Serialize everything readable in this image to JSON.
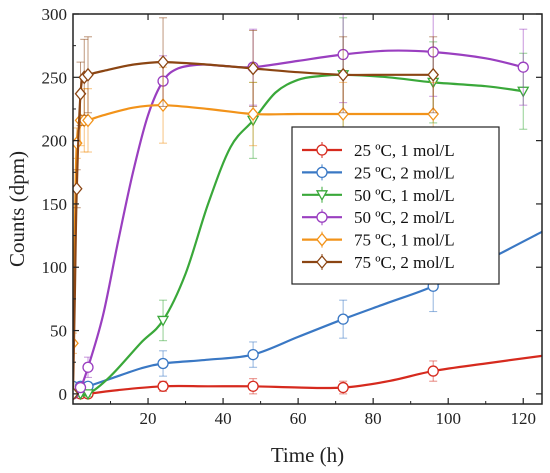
{
  "chart_data": {
    "type": "line",
    "title": "",
    "xlabel": "Time (h)",
    "ylabel": "Counts (dpm)",
    "xlim": [
      0,
      125
    ],
    "ylim": [
      -8,
      300
    ],
    "x_ticks": [
      20,
      40,
      60,
      80,
      100,
      120
    ],
    "y_ticks": [
      0,
      50,
      100,
      150,
      200,
      250,
      300
    ],
    "x_tick_labels": [
      "20",
      "40",
      "60",
      "80",
      "100",
      "120"
    ],
    "y_tick_labels": [
      "0",
      "50",
      "100",
      "150",
      "200",
      "250",
      "300"
    ],
    "grid": false,
    "legend_position": "center-right",
    "series": [
      {
        "name": "25 ºC, 1 mol/L",
        "color": "#d62a1e",
        "marker": "circle",
        "x": [
          0,
          2,
          4,
          24,
          48,
          72,
          96
        ],
        "y": [
          0,
          0,
          0,
          6,
          6,
          5,
          18
        ],
        "err": [
          2,
          2,
          2,
          4,
          6,
          5,
          8
        ],
        "curve_x": [
          0,
          2,
          4,
          12,
          24,
          36,
          48,
          60,
          72,
          84,
          96,
          110,
          125
        ],
        "curve_y": [
          -1,
          -1,
          0,
          3,
          6,
          6,
          6,
          5,
          5,
          10,
          18,
          24,
          30
        ]
      },
      {
        "name": "25 ºC, 2 mol/L",
        "color": "#3a78c4",
        "marker": "circle",
        "x": [
          0,
          2,
          4,
          24,
          48,
          72,
          96
        ],
        "y": [
          6,
          6,
          6,
          24,
          31,
          59,
          85
        ],
        "err": [
          3,
          3,
          3,
          10,
          10,
          15,
          20
        ],
        "curve_x": [
          0,
          2,
          4,
          10,
          18,
          24,
          36,
          48,
          60,
          72,
          84,
          96,
          110,
          125
        ],
        "curve_y": [
          5,
          5,
          6,
          12,
          20,
          24,
          27,
          31,
          45,
          59,
          72,
          85,
          105,
          128
        ]
      },
      {
        "name": "50 ºC, 1 mol/L",
        "color": "#3aa83a",
        "marker": "triangle-down",
        "x": [
          0,
          2,
          4,
          24,
          48,
          72,
          96,
          120
        ],
        "y": [
          0,
          0,
          0,
          58,
          216,
          252,
          246,
          239
        ],
        "err": [
          2,
          2,
          2,
          16,
          30,
          45,
          32,
          30
        ],
        "curve_x": [
          0,
          4,
          10,
          18,
          24,
          30,
          36,
          42,
          48,
          54,
          60,
          66,
          72,
          84,
          96,
          110,
          120
        ],
        "curve_y": [
          0,
          0,
          14,
          40,
          58,
          95,
          150,
          195,
          216,
          238,
          248,
          251,
          252,
          250,
          246,
          243,
          239
        ]
      },
      {
        "name": "50 ºC, 2 mol/L",
        "color": "#9a3fc0",
        "marker": "circle",
        "x": [
          0,
          2,
          4,
          24,
          48,
          72,
          96,
          120
        ],
        "y": [
          0,
          5,
          21,
          247,
          258,
          268,
          270,
          258
        ],
        "err": [
          3,
          4,
          8,
          20,
          30,
          38,
          35,
          30
        ],
        "curve_x": [
          0,
          2,
          4,
          8,
          12,
          16,
          20,
          24,
          28,
          34,
          40,
          48,
          60,
          72,
          84,
          96,
          110,
          120
        ],
        "curve_y": [
          0,
          5,
          21,
          62,
          120,
          175,
          220,
          247,
          257,
          260,
          259,
          258,
          263,
          268,
          271,
          270,
          265,
          258
        ]
      },
      {
        "name": "75 ºC, 1 mol/L",
        "color": "#f2931a",
        "marker": "diamond",
        "x": [
          0,
          1,
          2,
          3,
          4,
          24,
          48,
          72,
          96
        ],
        "y": [
          40,
          198,
          216,
          216,
          216,
          228,
          221,
          221,
          221
        ],
        "err": [
          8,
          12,
          20,
          25,
          25,
          30,
          25,
          25,
          25
        ],
        "curve_x": [
          0,
          0.5,
          1,
          2,
          3,
          4,
          8,
          16,
          24,
          36,
          48,
          60,
          72,
          84,
          96
        ],
        "curve_y": [
          40,
          130,
          198,
          212,
          216,
          216,
          220,
          226,
          228,
          225,
          221,
          221,
          221,
          221,
          221
        ]
      },
      {
        "name": "75 ºC, 2 mol/L",
        "color": "#8b4513",
        "marker": "diamond",
        "x": [
          0,
          1,
          2,
          3,
          4,
          24,
          48,
          72,
          96
        ],
        "y": [
          0,
          162,
          237,
          250,
          252,
          262,
          257,
          252,
          252
        ],
        "err": [
          3,
          15,
          25,
          30,
          30,
          35,
          30,
          30,
          30
        ],
        "curve_x": [
          0,
          0.5,
          1,
          2,
          3,
          4,
          8,
          16,
          24,
          36,
          48,
          60,
          72,
          84,
          96
        ],
        "curve_y": [
          0,
          80,
          162,
          237,
          250,
          252,
          255,
          260,
          262,
          260,
          257,
          254,
          252,
          252,
          252
        ]
      }
    ]
  }
}
